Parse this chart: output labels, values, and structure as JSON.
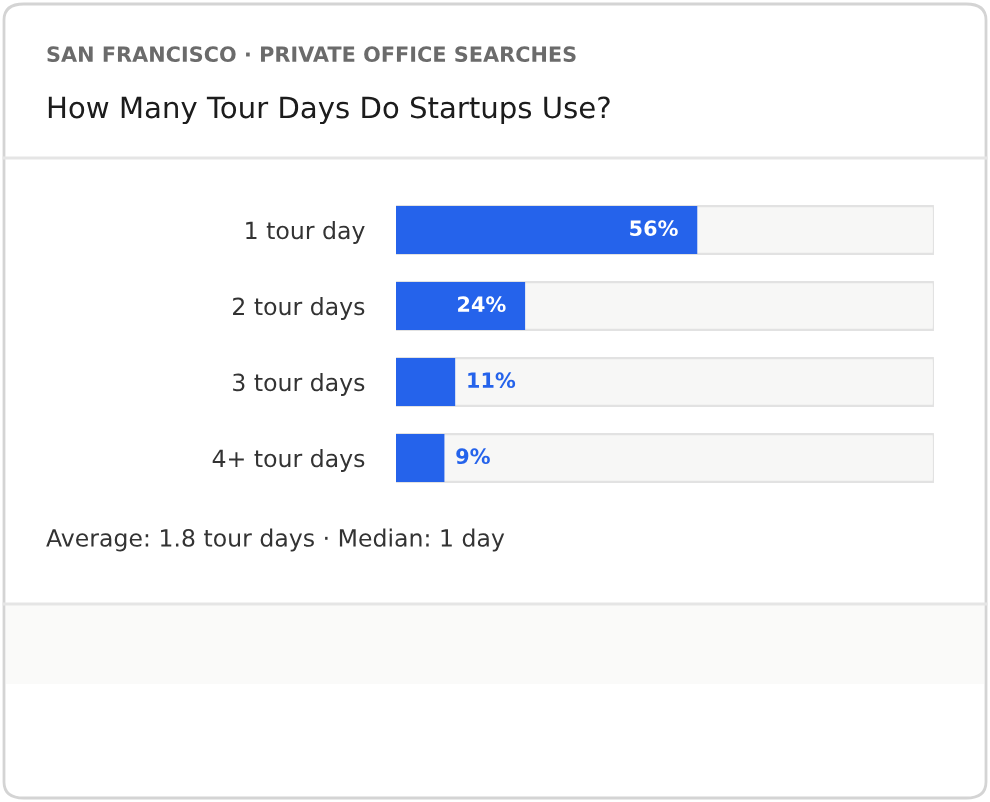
{
  "chart_data": {
    "type": "bar",
    "orientation": "horizontal",
    "subtitle": "SAN FRANCISCO · PRIVATE OFFICE SEARCHES",
    "title": "How Many Tour Days Do Startups Use?",
    "categories": [
      "1 tour day",
      "2 tour days",
      "3 tour days",
      "4+ tour days"
    ],
    "values": [
      56,
      24,
      11,
      9
    ],
    "color": "#2563eb",
    "xlim": [
      0,
      100
    ],
    "value_labels": [
      "56%",
      "24%",
      "11%",
      "9%"
    ],
    "tick_labels": "y",
    "grid": false,
    "legend": false,
    "annotations": [
      "Average: 1.8 tour days · Median: 1 day"
    ]
  }
}
